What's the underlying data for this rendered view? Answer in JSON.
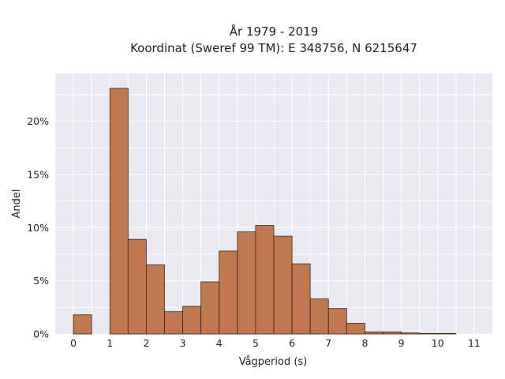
{
  "chart_data": {
    "type": "bar",
    "title_lines": [
      "År 1979 - 2019",
      "Koordinat (Sweref 99 TM): E 348756, N 6215647"
    ],
    "xlabel": "Vågperiod (s)",
    "ylabel": "Andel",
    "xlim": [
      -0.5,
      11.5
    ],
    "ylim": [
      0,
      24.5
    ],
    "x_ticks": [
      "0",
      "1",
      "2",
      "3",
      "4",
      "5",
      "6",
      "7",
      "8",
      "9",
      "10",
      "11"
    ],
    "y_ticks": [
      "0%",
      "5%",
      "10%",
      "15%",
      "20%"
    ],
    "bin_width": 0.5,
    "bins": [
      {
        "x0": 0.0,
        "value": 1.8
      },
      {
        "x0": 1.0,
        "value": 23.1
      },
      {
        "x0": 1.5,
        "value": 8.9
      },
      {
        "x0": 2.0,
        "value": 6.5
      },
      {
        "x0": 2.5,
        "value": 2.1
      },
      {
        "x0": 3.0,
        "value": 2.6
      },
      {
        "x0": 3.5,
        "value": 4.9
      },
      {
        "x0": 4.0,
        "value": 7.8
      },
      {
        "x0": 4.5,
        "value": 9.6
      },
      {
        "x0": 5.0,
        "value": 10.2
      },
      {
        "x0": 5.5,
        "value": 9.2
      },
      {
        "x0": 6.0,
        "value": 6.6
      },
      {
        "x0": 6.5,
        "value": 3.3
      },
      {
        "x0": 7.0,
        "value": 2.4
      },
      {
        "x0": 7.5,
        "value": 1.0
      },
      {
        "x0": 8.0,
        "value": 0.2
      },
      {
        "x0": 8.5,
        "value": 0.2
      },
      {
        "x0": 9.0,
        "value": 0.1
      },
      {
        "x0": 9.5,
        "value": 0.05
      },
      {
        "x0": 10.0,
        "value": 0.05
      }
    ],
    "colors": {
      "bar_fill": "#bf7850",
      "bar_edge": "#3a2418",
      "plot_background": "#e9e9f1",
      "grid": "#ffffff"
    },
    "grid": true,
    "legend": false
  }
}
